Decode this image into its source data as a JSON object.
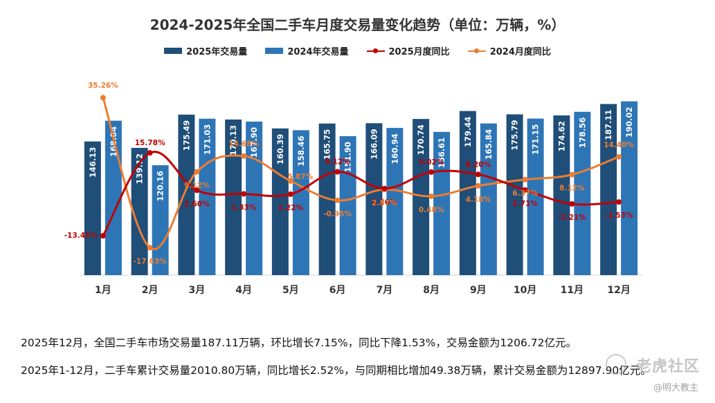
{
  "chart_data": {
    "type": "bar",
    "title": "2024-2025年全国二手车月度交易量变化趋势（单位：万辆，%）",
    "categories": [
      "1月",
      "2月",
      "3月",
      "4月",
      "5月",
      "6月",
      "7月",
      "8月",
      "9月",
      "10月",
      "11月",
      "12月"
    ],
    "series": [
      {
        "name": "2025年交易量",
        "kind": "bar",
        "color": "#1f4e79",
        "values": [
          146.13,
          139.12,
          175.49,
          170.13,
          160.39,
          165.75,
          166.09,
          170.74,
          179.44,
          175.79,
          174.62,
          187.11
        ],
        "labels": [
          "146.13",
          "139.12",
          "175.49",
          "170.13",
          "160.39",
          "165.75",
          "166.09",
          "170.74",
          "179.44",
          "175.79",
          "174.62",
          "187.11"
        ]
      },
      {
        "name": "2024年交易量",
        "kind": "bar",
        "color": "#2e75b6",
        "values": [
          168.84,
          120.16,
          171.03,
          167.9,
          158.46,
          151.9,
          160.94,
          156.61,
          165.84,
          171.15,
          178.56,
          190.02
        ],
        "labels": [
          "168.84",
          "120.16",
          "171.03",
          "167.90",
          "158.46",
          "151.90",
          "160.94",
          "156.61",
          "165.84",
          "171.15",
          "178.56",
          "190.02"
        ]
      },
      {
        "name": "2025月度同比",
        "kind": "line",
        "color": "#c00000",
        "values": [
          -13.45,
          15.78,
          2.6,
          1.33,
          1.22,
          9.12,
          3.2,
          9.02,
          8.2,
          2.71,
          -2.21,
          -1.53
        ],
        "labels": [
          "-13.45%",
          "15.78%",
          "2.60%",
          "1.33%",
          "1.22%",
          "9.12%",
          "3.20%",
          "9.02%",
          "8.20%",
          "2.71%",
          "-2.21%",
          "-1.53%"
        ]
      },
      {
        "name": "2024月度同比",
        "kind": "line",
        "color": "#ed7d31",
        "values": [
          35.26,
          -17.63,
          9.12,
          14.68,
          5.87,
          -0.95,
          2.87,
          0.48,
          4.18,
          6.37,
          8.12,
          14.4
        ],
        "labels": [
          "35.26%",
          "-17.63%",
          "9.12%",
          "14.68%",
          "5.87%",
          "-0.95%",
          "2.87%",
          "0.48%",
          "4.18%",
          "6.37%",
          "8.12%",
          "14.40%"
        ]
      }
    ],
    "bar_ylim": [
      0,
      195
    ],
    "line_ylim": [
      -20,
      38
    ],
    "grid": false,
    "legend_position": "top"
  },
  "notes": {
    "line1": "2025年12月，全国二手车市场交易量187.11万辆，环比增长7.15%，同比下降1.53%，交易金额为1206.72亿元。",
    "line2": "2025年1-12月，二手车累计交易量2010.80万辆，同比增长2.52%，与同期相比增加49.38万辆，累计交易金额为12897.90亿元。"
  },
  "watermark": {
    "main": "老虎社区",
    "sub": "@明大教主"
  }
}
